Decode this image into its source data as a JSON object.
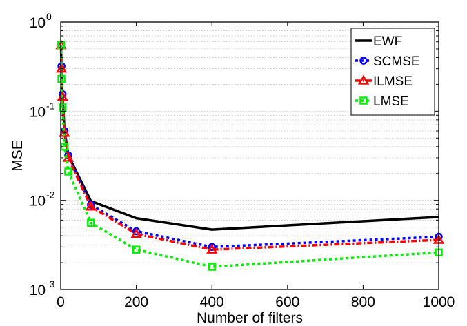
{
  "chart_data": {
    "type": "line",
    "xlabel": "Number of filters",
    "ylabel": "MSE",
    "xlim": [
      0,
      1000
    ],
    "ylim": [
      0.001,
      1
    ],
    "yscale": "log",
    "grid": "log-minor-horizontal",
    "legend_position": "top-right",
    "x_ticks": [
      "0",
      "200",
      "400",
      "600",
      "800",
      "1000"
    ],
    "y_ticks": [
      {
        "base": "10",
        "exp": "-3",
        "value": 0.001
      },
      {
        "base": "10",
        "exp": "-2",
        "value": 0.01
      },
      {
        "base": "10",
        "exp": "-1",
        "value": 0.1
      },
      {
        "base": "10",
        "exp": "0",
        "value": 1
      }
    ],
    "series": [
      {
        "name": "EWF",
        "color": "#000000",
        "style": "solid",
        "marker": "none",
        "x": [
          1,
          2,
          5,
          10,
          20,
          80,
          200,
          400,
          1000
        ],
        "y": [
          0.55,
          0.3,
          0.15,
          0.06,
          0.032,
          0.0098,
          0.0063,
          0.0047,
          0.0065
        ]
      },
      {
        "name": "SCMSE",
        "color": "#0000ff",
        "style": "dotted",
        "marker": "circle",
        "x": [
          1,
          2,
          5,
          10,
          20,
          80,
          200,
          400,
          1000
        ],
        "y": [
          0.55,
          0.32,
          0.155,
          0.06,
          0.032,
          0.0089,
          0.0045,
          0.003,
          0.0039
        ]
      },
      {
        "name": "ILMSE",
        "color": "#ff0000",
        "style": "dashdot",
        "marker": "triangle",
        "x": [
          1,
          2,
          5,
          10,
          20,
          80,
          200,
          400,
          1000
        ],
        "y": [
          0.55,
          0.3,
          0.145,
          0.057,
          0.03,
          0.0085,
          0.0042,
          0.0028,
          0.0036
        ]
      },
      {
        "name": "LMSE",
        "color": "#00ee00",
        "style": "dotted",
        "marker": "square",
        "x": [
          1,
          2,
          5,
          10,
          20,
          80,
          200,
          400,
          1000
        ],
        "y": [
          0.55,
          0.23,
          0.11,
          0.04,
          0.021,
          0.0056,
          0.0028,
          0.0018,
          0.0026
        ]
      }
    ]
  }
}
